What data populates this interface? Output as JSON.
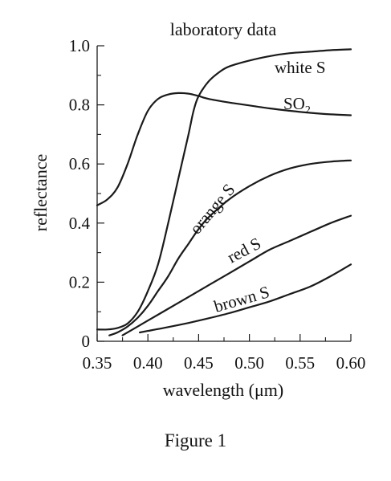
{
  "figure_caption": "Figure 1",
  "chart_data": {
    "type": "line",
    "title": "laboratory data",
    "xlabel": "wavelength (μm)",
    "ylabel": "reflectance",
    "xlim": [
      0.35,
      0.6
    ],
    "ylim": [
      0,
      1.0
    ],
    "x_ticks": [
      "0.35",
      "0.40",
      "0.45",
      "0.50",
      "0.55",
      "0.60"
    ],
    "y_ticks": [
      "0",
      "0.2",
      "0.4",
      "0.6",
      "0.8",
      "1.0"
    ],
    "grid": false,
    "legend": "none (series labeled inline on curves)",
    "colors": {
      "line": "#1a1a1a",
      "axis": "#1a1a1a"
    },
    "series": [
      {
        "name": "white S",
        "x": [
          0.35,
          0.36,
          0.37,
          0.38,
          0.39,
          0.4,
          0.41,
          0.42,
          0.43,
          0.44,
          0.445,
          0.45,
          0.46,
          0.47,
          0.48,
          0.5,
          0.52,
          0.54,
          0.56,
          0.58,
          0.6
        ],
        "y": [
          0.04,
          0.04,
          0.045,
          0.06,
          0.1,
          0.17,
          0.26,
          0.4,
          0.55,
          0.7,
          0.78,
          0.83,
          0.88,
          0.91,
          0.93,
          0.95,
          0.965,
          0.975,
          0.98,
          0.985,
          0.988
        ]
      },
      {
        "name": "SO2",
        "x": [
          0.35,
          0.36,
          0.37,
          0.38,
          0.39,
          0.4,
          0.41,
          0.42,
          0.43,
          0.44,
          0.45,
          0.46,
          0.48,
          0.5,
          0.52,
          0.54,
          0.56,
          0.58,
          0.6
        ],
        "y": [
          0.46,
          0.48,
          0.52,
          0.6,
          0.7,
          0.78,
          0.82,
          0.835,
          0.84,
          0.838,
          0.83,
          0.82,
          0.808,
          0.798,
          0.788,
          0.78,
          0.773,
          0.768,
          0.765
        ]
      },
      {
        "name": "orange S",
        "x": [
          0.362,
          0.37,
          0.38,
          0.39,
          0.4,
          0.41,
          0.42,
          0.43,
          0.44,
          0.45,
          0.46,
          0.48,
          0.5,
          0.52,
          0.54,
          0.56,
          0.58,
          0.6
        ],
        "y": [
          0.02,
          0.03,
          0.05,
          0.08,
          0.12,
          0.17,
          0.22,
          0.28,
          0.33,
          0.38,
          0.42,
          0.48,
          0.525,
          0.56,
          0.585,
          0.6,
          0.608,
          0.612
        ]
      },
      {
        "name": "red S",
        "x": [
          0.375,
          0.39,
          0.4,
          0.42,
          0.44,
          0.46,
          0.48,
          0.5,
          0.52,
          0.54,
          0.56,
          0.58,
          0.6
        ],
        "y": [
          0.02,
          0.05,
          0.07,
          0.11,
          0.15,
          0.19,
          0.23,
          0.27,
          0.31,
          0.34,
          0.37,
          0.4,
          0.425
        ]
      },
      {
        "name": "brown S",
        "x": [
          0.392,
          0.4,
          0.42,
          0.44,
          0.46,
          0.48,
          0.5,
          0.52,
          0.54,
          0.56,
          0.58,
          0.6
        ],
        "y": [
          0.03,
          0.035,
          0.048,
          0.062,
          0.078,
          0.095,
          0.115,
          0.135,
          0.16,
          0.185,
          0.22,
          0.26
        ]
      }
    ]
  }
}
